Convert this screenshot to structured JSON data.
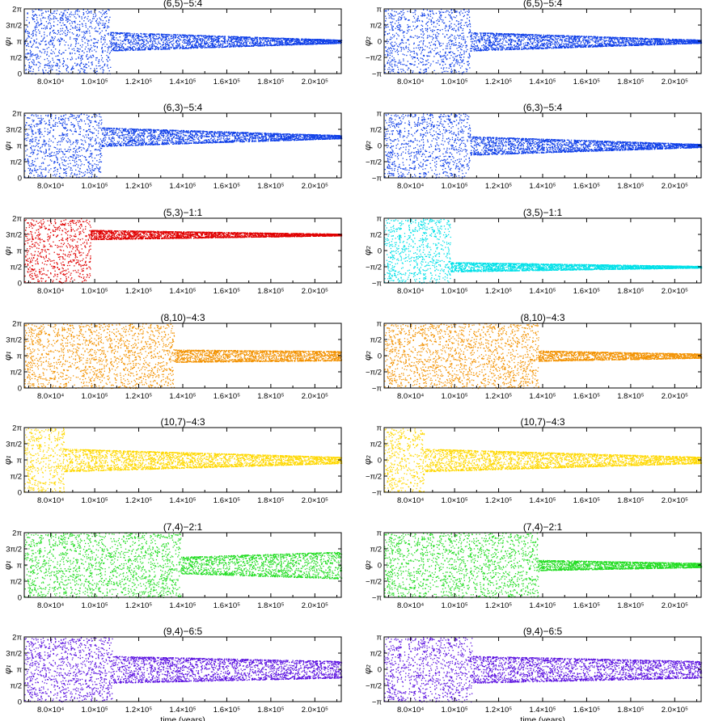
{
  "figure": {
    "xlabel": "time (years)",
    "x_tick_labels": [
      "8.0×10⁴",
      "1.0×10⁵",
      "1.2×10⁵",
      "1.4×10⁵",
      "1.6×10⁵",
      "1.8×10⁵",
      "2.0×10⁵"
    ],
    "phi1_tick_labels": [
      "0",
      "π/2",
      "π",
      "3π/2",
      "2π"
    ],
    "phi2_tick_labels": [
      "−π",
      "−π/2",
      "0",
      "π/2",
      "π"
    ]
  },
  "chart_data": [
    {
      "type": "scatter",
      "title": "(6,5)−5:4",
      "ylabel": "φ₁",
      "xlim": [
        68000,
        212000
      ],
      "ylim": [
        0,
        6.283
      ],
      "color": "#1040e8",
      "phases": [
        {
          "x": [
            68000,
            107000
          ],
          "behavior": "circulating"
        },
        {
          "x": [
            107000,
            212000
          ],
          "behavior": "libration",
          "center": 3.14,
          "amplitude_start": 0.9,
          "amplitude_end": 0.15
        }
      ]
    },
    {
      "type": "scatter",
      "title": "(6,5)−5:4",
      "ylabel": "φ₂",
      "xlim": [
        68000,
        212000
      ],
      "ylim": [
        -3.1416,
        3.1416
      ],
      "color": "#1040e8",
      "phases": [
        {
          "x": [
            68000,
            107000
          ],
          "behavior": "circulating"
        },
        {
          "x": [
            107000,
            212000
          ],
          "behavior": "libration",
          "center": 0.0,
          "amplitude_start": 0.9,
          "amplitude_end": 0.15
        }
      ]
    },
    {
      "type": "scatter",
      "title": "(6,3)−5:4",
      "ylabel": "φ₁",
      "xlim": [
        68000,
        212000
      ],
      "ylim": [
        0,
        6.283
      ],
      "color": "#1040e8",
      "phases": [
        {
          "x": [
            68000,
            103000
          ],
          "behavior": "circulating"
        },
        {
          "x": [
            103000,
            212000
          ],
          "behavior": "libration",
          "center": 4.0,
          "amplitude_start": 0.9,
          "amplitude_end": 0.15
        }
      ]
    },
    {
      "type": "scatter",
      "title": "(6,3)−5:4",
      "ylabel": "φ₂",
      "xlim": [
        68000,
        212000
      ],
      "ylim": [
        -3.1416,
        3.1416
      ],
      "color": "#1040e8",
      "phases": [
        {
          "x": [
            68000,
            107000
          ],
          "behavior": "circulating"
        },
        {
          "x": [
            107000,
            212000
          ],
          "behavior": "libration",
          "center": 0.0,
          "amplitude_start": 0.9,
          "amplitude_end": 0.15
        }
      ]
    },
    {
      "type": "scatter",
      "title": "(5,3)−1:1",
      "ylabel": "φ₁",
      "xlim": [
        68000,
        212000
      ],
      "ylim": [
        0,
        6.283
      ],
      "color": "#e00000",
      "phases": [
        {
          "x": [
            68000,
            98000
          ],
          "behavior": "circulating"
        },
        {
          "x": [
            98000,
            212000
          ],
          "behavior": "libration",
          "center": 4.7,
          "amplitude_start": 0.45,
          "amplitude_end": 0.08
        }
      ]
    },
    {
      "type": "scatter",
      "title": "(3,5)−1:1",
      "ylabel": "φ₂",
      "xlim": [
        68000,
        212000
      ],
      "ylim": [
        -3.1416,
        3.1416
      ],
      "color": "#00e0e8",
      "phases": [
        {
          "x": [
            68000,
            98000
          ],
          "behavior": "circulating"
        },
        {
          "x": [
            98000,
            212000
          ],
          "behavior": "libration",
          "center": -1.57,
          "amplitude_start": 0.45,
          "amplitude_end": 0.08
        }
      ]
    },
    {
      "type": "scatter",
      "title": "(8,10)−4:3",
      "ylabel": "φ₁",
      "xlim": [
        68000,
        212000
      ],
      "ylim": [
        0,
        6.283
      ],
      "color": "#f39200",
      "phases": [
        {
          "x": [
            68000,
            136000
          ],
          "behavior": "circulating"
        },
        {
          "x": [
            136000,
            212000
          ],
          "behavior": "libration",
          "center": 3.14,
          "amplitude_start": 0.6,
          "amplitude_end": 0.45
        }
      ]
    },
    {
      "type": "scatter",
      "title": "(8,10)−4:3",
      "ylabel": "φ₂",
      "xlim": [
        68000,
        212000
      ],
      "ylim": [
        -3.1416,
        3.1416
      ],
      "color": "#f39200",
      "phases": [
        {
          "x": [
            68000,
            138000
          ],
          "behavior": "circulating"
        },
        {
          "x": [
            138000,
            212000
          ],
          "behavior": "libration",
          "center": 0.0,
          "amplitude_start": 0.5,
          "amplitude_end": 0.2
        }
      ]
    },
    {
      "type": "scatter",
      "title": "(10,7)−4:3",
      "ylabel": "φ₁",
      "xlim": [
        68000,
        212000
      ],
      "ylim": [
        0,
        6.283
      ],
      "color": "#ffd800",
      "phases": [
        {
          "x": [
            68000,
            86000
          ],
          "behavior": "circulating"
        },
        {
          "x": [
            86000,
            212000
          ],
          "behavior": "libration",
          "center": 3.14,
          "amplitude_start": 1.1,
          "amplitude_end": 0.3
        }
      ]
    },
    {
      "type": "scatter",
      "title": "(10,7)−4:3",
      "ylabel": "φ₂",
      "xlim": [
        68000,
        212000
      ],
      "ylim": [
        -3.1416,
        3.1416
      ],
      "color": "#ffd800",
      "phases": [
        {
          "x": [
            68000,
            86000
          ],
          "behavior": "circulating"
        },
        {
          "x": [
            86000,
            212000
          ],
          "behavior": "libration",
          "center": 0.0,
          "amplitude_start": 1.1,
          "amplitude_end": 0.3
        }
      ]
    },
    {
      "type": "scatter",
      "title": "(7,4)−2:1",
      "ylabel": "φ₁",
      "xlim": [
        68000,
        212000
      ],
      "ylim": [
        0,
        6.283
      ],
      "color": "#22dd22",
      "phases": [
        {
          "x": [
            68000,
            139000
          ],
          "behavior": "circulating"
        },
        {
          "x": [
            139000,
            212000
          ],
          "behavior": "libration",
          "center": 3.14,
          "amplitude_start": 0.8,
          "amplitude_end": 1.3
        }
      ]
    },
    {
      "type": "scatter",
      "title": "(7,4)−2:1",
      "ylabel": "φ₂",
      "xlim": [
        68000,
        212000
      ],
      "ylim": [
        -3.1416,
        3.1416
      ],
      "color": "#22dd22",
      "phases": [
        {
          "x": [
            68000,
            138000
          ],
          "behavior": "circulating"
        },
        {
          "x": [
            138000,
            212000
          ],
          "behavior": "libration",
          "center": 0.0,
          "amplitude_start": 0.5,
          "amplitude_end": 0.2
        }
      ]
    },
    {
      "type": "scatter",
      "title": "(9,4)−6:5",
      "ylabel": "φ₁",
      "xlim": [
        68000,
        212000
      ],
      "ylim": [
        0,
        6.283
      ],
      "color": "#5a10e0",
      "phases": [
        {
          "x": [
            68000,
            108000
          ],
          "behavior": "circulating"
        },
        {
          "x": [
            108000,
            212000
          ],
          "behavior": "libration",
          "center": 3.14,
          "amplitude_start": 1.3,
          "amplitude_end": 0.8
        }
      ]
    },
    {
      "type": "scatter",
      "title": "(9,4)−6:5",
      "ylabel": "φ₂",
      "xlim": [
        68000,
        212000
      ],
      "ylim": [
        -3.1416,
        3.1416
      ],
      "color": "#5a10e0",
      "phases": [
        {
          "x": [
            68000,
            108000
          ],
          "behavior": "circulating"
        },
        {
          "x": [
            108000,
            212000
          ],
          "behavior": "libration",
          "center": 0.0,
          "amplitude_start": 1.3,
          "amplitude_end": 0.8
        }
      ]
    }
  ]
}
